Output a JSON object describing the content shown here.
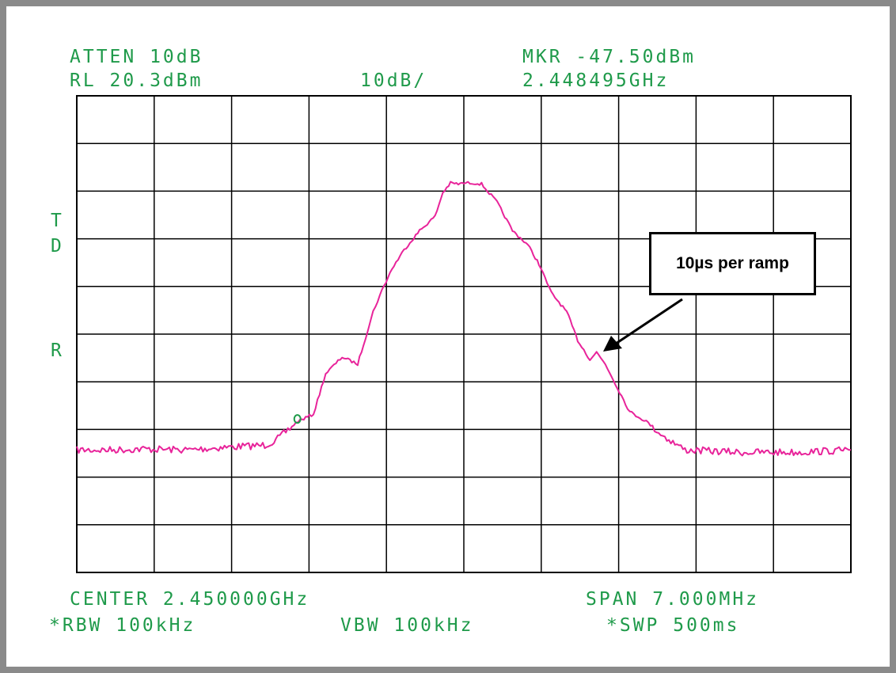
{
  "header": {
    "atten": "ATTEN 10dB",
    "rl": "RL 20.3dBm",
    "scale": "10dB/",
    "marker_level": "MKR -47.50dBm",
    "marker_freq": "2.448495GHz"
  },
  "side_labels": [
    "T",
    "D",
    "R"
  ],
  "footer": {
    "center": "CENTER 2.450000GHz",
    "span": "SPAN 7.000MHz",
    "rbw": "*RBW 100kHz",
    "vbw": "VBW 100kHz",
    "swp": "*SWP 500ms"
  },
  "callout": "10µs per ramp",
  "colors": {
    "trace": "#e8249a",
    "annotation": "#1f9a4a",
    "grid": "#000000",
    "frame": "#8a8a8a"
  },
  "chart_data": {
    "type": "line",
    "x_unit": "GHz",
    "y_unit": "dBm",
    "xlim": [
      2.4465,
      2.4535
    ],
    "ylim": [
      -79.7,
      20.3
    ],
    "grid": true,
    "marker": {
      "x": 2.448495,
      "y": -47.5
    },
    "series": [
      {
        "x": [
          2.4465,
          2.4468,
          2.4471,
          2.4475,
          2.4478,
          2.4482,
          2.4483,
          2.4485,
          2.44864,
          2.44875,
          2.4489,
          2.44904,
          2.44918,
          2.44926,
          2.44935,
          2.44946,
          2.4496,
          2.44974,
          2.44981,
          2.44988,
          2.44995,
          2.45002,
          2.45009,
          2.45016,
          2.4503,
          2.45044,
          2.45058,
          2.45068,
          2.45079,
          2.45093,
          2.45103,
          2.45114,
          2.4512,
          2.45128,
          2.4515,
          2.45165,
          2.4518,
          2.452,
          2.4525,
          2.453,
          2.4535
        ],
        "y": [
          -54,
          -54,
          -53.8,
          -54,
          -53.5,
          -53,
          -52,
          -48,
          -46.5,
          -38,
          -34.5,
          -36,
          -25,
          -20.5,
          -16,
          -12,
          -8,
          -5,
          0,
          2,
          1.8,
          2,
          2,
          1.8,
          -2,
          -8,
          -11,
          -15,
          -21,
          -25,
          -31,
          -35,
          -33.5,
          -36,
          -46,
          -48,
          -51,
          -54,
          -54.5,
          -54.5,
          -54
        ]
      }
    ]
  }
}
